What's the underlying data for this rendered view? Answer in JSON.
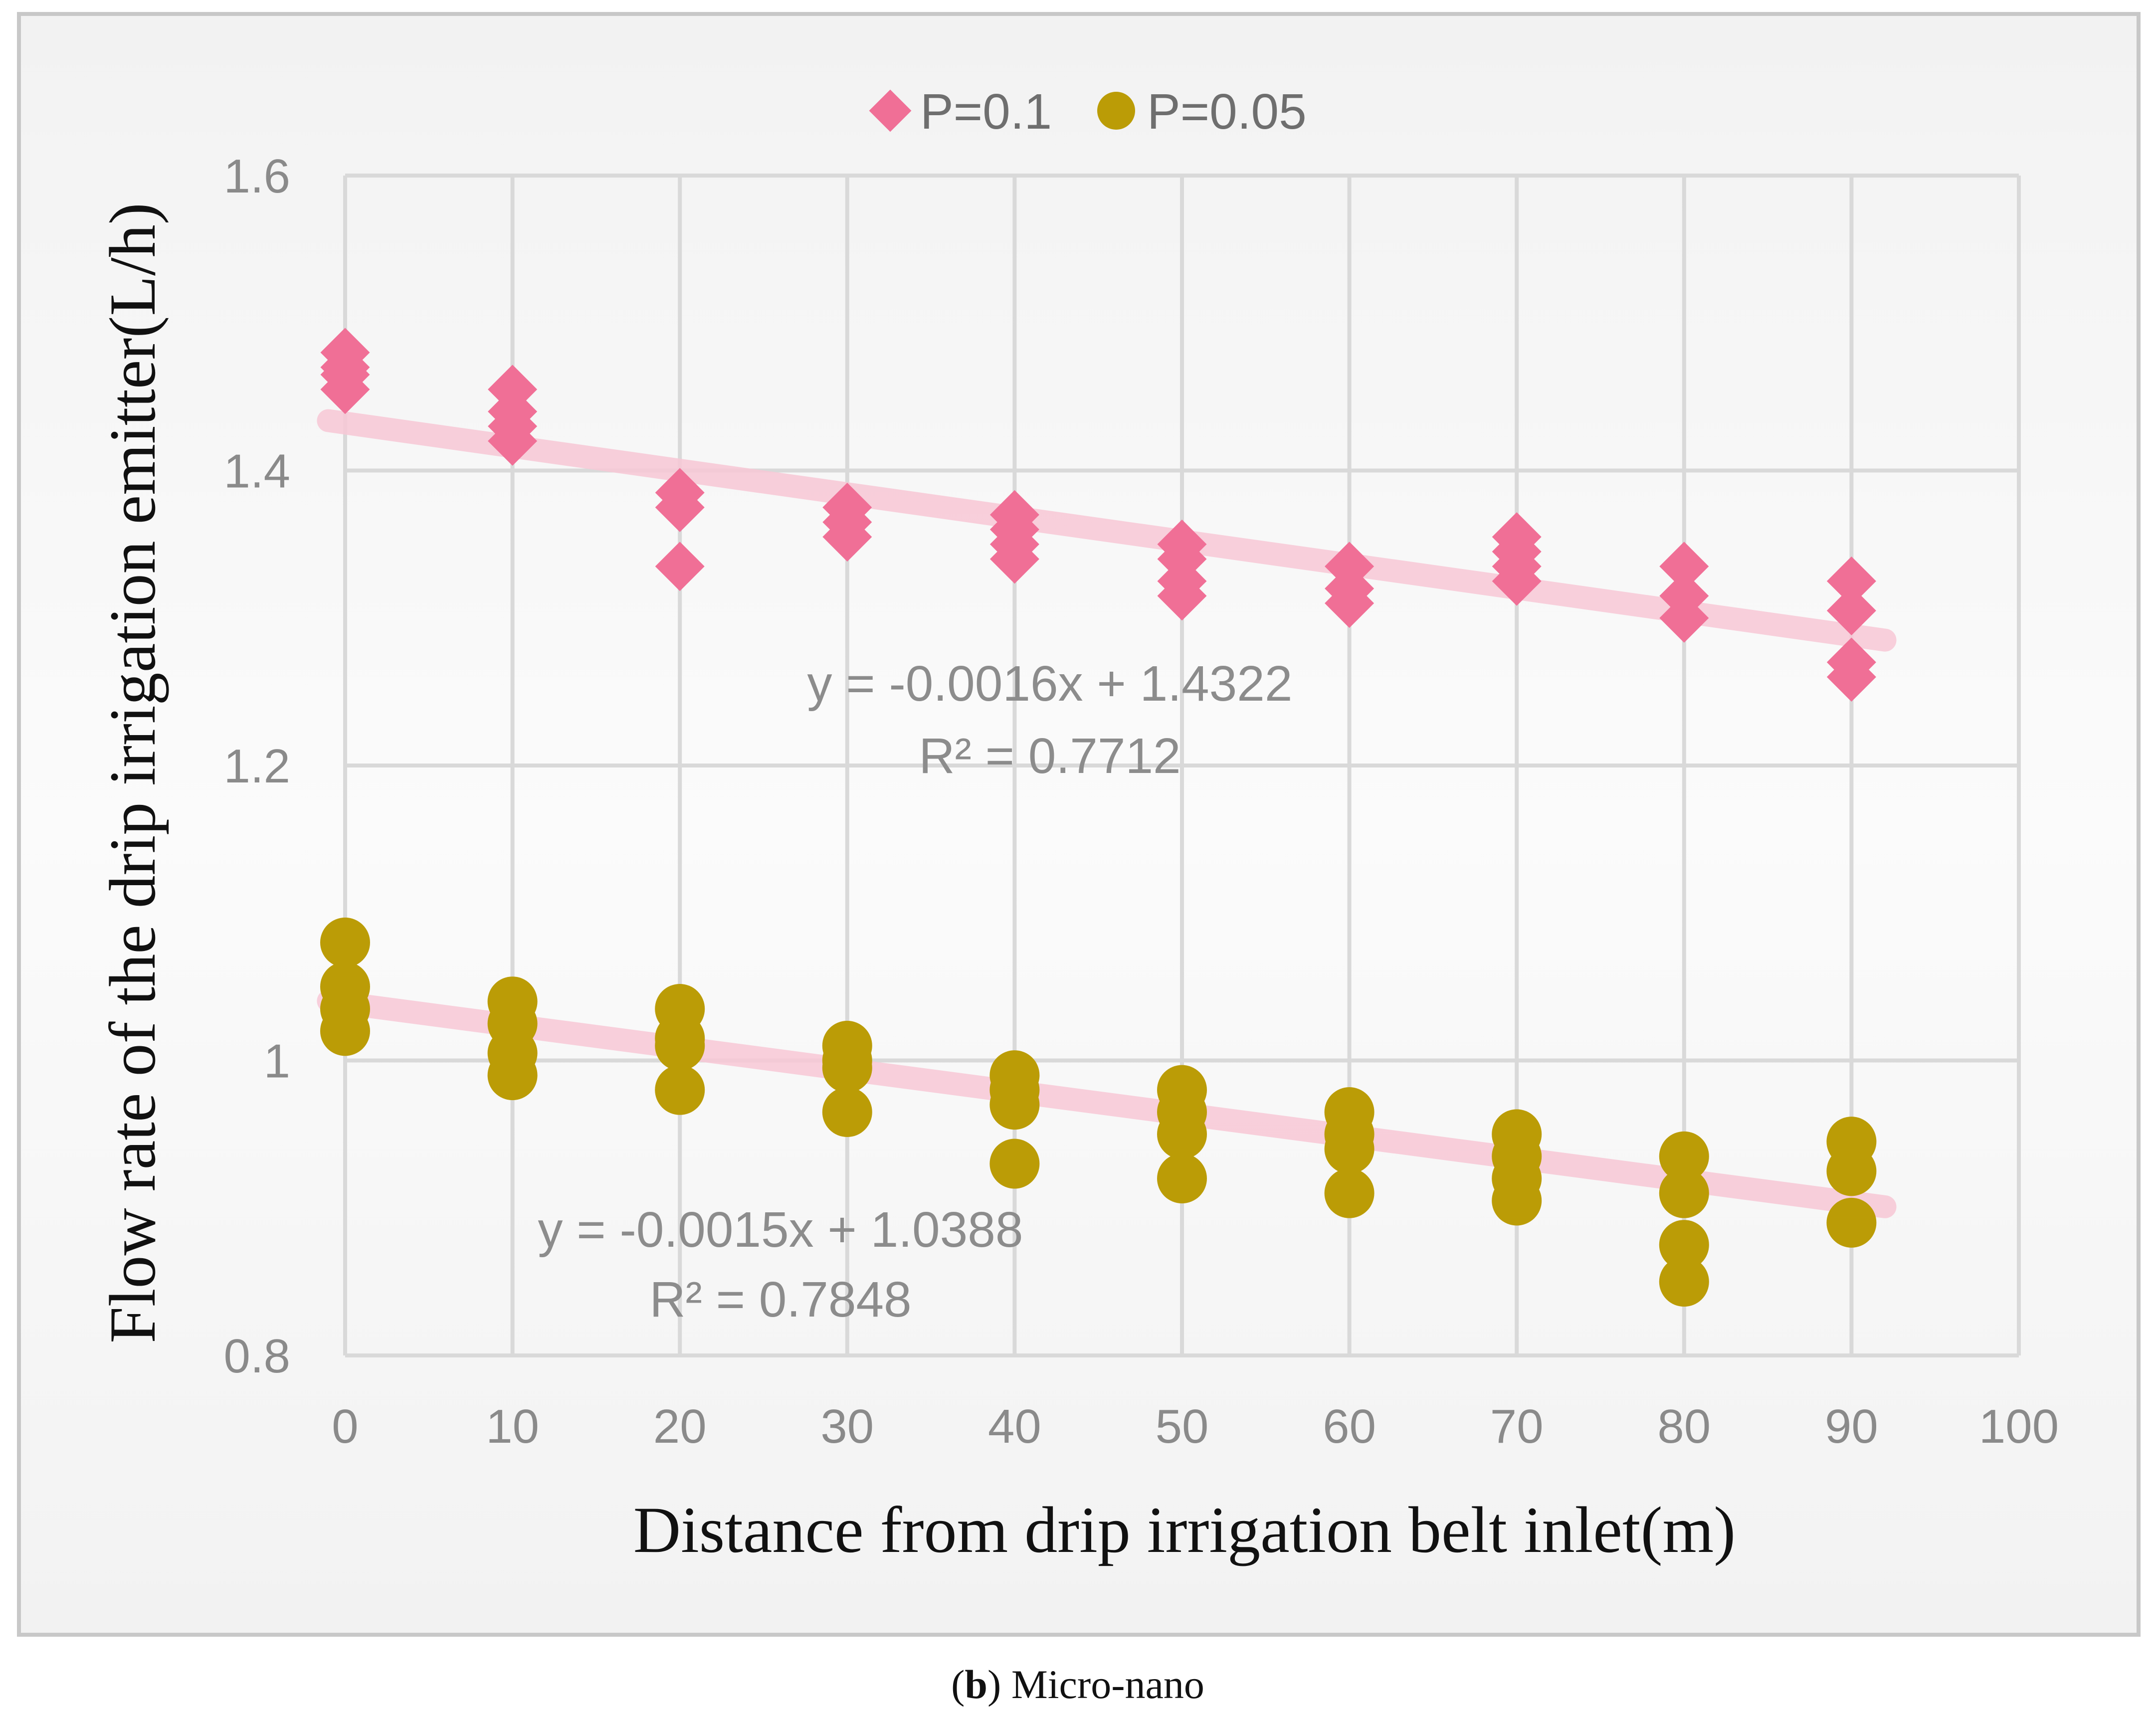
{
  "chart_data": {
    "type": "scatter",
    "xlabel": "Distance from drip irrigation belt inlet(m)",
    "ylabel": "Flow rate of the drip irrigation emitter(L/h)",
    "xlim": [
      0,
      100
    ],
    "ylim": [
      0.8,
      1.6
    ],
    "x_ticks": [
      "0",
      "10",
      "20",
      "30",
      "40",
      "50",
      "60",
      "70",
      "80",
      "90",
      "100"
    ],
    "y_ticks": [
      "0.8",
      "1",
      "1.2",
      "1.4",
      "1.6"
    ],
    "grid": true,
    "legend_position": "top-center",
    "series": [
      {
        "name": "P=0.1",
        "marker": "diamond",
        "color": "#f06f96",
        "points": [
          [
            0,
            1.48
          ],
          [
            0,
            1.47
          ],
          [
            0,
            1.465
          ],
          [
            0,
            1.455
          ],
          [
            10,
            1.455
          ],
          [
            10,
            1.44
          ],
          [
            10,
            1.43
          ],
          [
            10,
            1.42
          ],
          [
            20,
            1.385
          ],
          [
            20,
            1.375
          ],
          [
            20,
            1.335
          ],
          [
            30,
            1.375
          ],
          [
            30,
            1.365
          ],
          [
            30,
            1.355
          ],
          [
            40,
            1.37
          ],
          [
            40,
            1.36
          ],
          [
            40,
            1.35
          ],
          [
            40,
            1.34
          ],
          [
            50,
            1.35
          ],
          [
            50,
            1.34
          ],
          [
            50,
            1.325
          ],
          [
            50,
            1.315
          ],
          [
            60,
            1.335
          ],
          [
            60,
            1.32
          ],
          [
            60,
            1.31
          ],
          [
            70,
            1.355
          ],
          [
            70,
            1.345
          ],
          [
            70,
            1.335
          ],
          [
            70,
            1.325
          ],
          [
            80,
            1.335
          ],
          [
            80,
            1.315
          ],
          [
            80,
            1.3
          ],
          [
            90,
            1.325
          ],
          [
            90,
            1.305
          ],
          [
            90,
            1.27
          ],
          [
            90,
            1.26
          ]
        ],
        "trendline": {
          "slope": -0.0016,
          "intercept": 1.4322,
          "equation": "y = -0.0016x + 1.4322",
          "r2": "R² = 0.7712"
        }
      },
      {
        "name": "P=0.05",
        "marker": "circle",
        "color": "#bb9c06",
        "points": [
          [
            0,
            1.08
          ],
          [
            0,
            1.05
          ],
          [
            0,
            1.035
          ],
          [
            0,
            1.02
          ],
          [
            10,
            1.04
          ],
          [
            10,
            1.025
          ],
          [
            10,
            1.005
          ],
          [
            10,
            0.99
          ],
          [
            20,
            1.035
          ],
          [
            20,
            1.015
          ],
          [
            20,
            1.01
          ],
          [
            20,
            0.98
          ],
          [
            30,
            1.01
          ],
          [
            30,
            1.0
          ],
          [
            30,
            0.995
          ],
          [
            30,
            0.965
          ],
          [
            40,
            0.99
          ],
          [
            40,
            0.98
          ],
          [
            40,
            0.97
          ],
          [
            40,
            0.93
          ],
          [
            50,
            0.98
          ],
          [
            50,
            0.965
          ],
          [
            50,
            0.95
          ],
          [
            50,
            0.92
          ],
          [
            60,
            0.965
          ],
          [
            60,
            0.95
          ],
          [
            60,
            0.94
          ],
          [
            60,
            0.91
          ],
          [
            70,
            0.95
          ],
          [
            70,
            0.935
          ],
          [
            70,
            0.92
          ],
          [
            70,
            0.905
          ],
          [
            80,
            0.935
          ],
          [
            80,
            0.91
          ],
          [
            80,
            0.875
          ],
          [
            80,
            0.85
          ],
          [
            90,
            0.945
          ],
          [
            90,
            0.925
          ],
          [
            90,
            0.89
          ]
        ],
        "trendline": {
          "slope": -0.0015,
          "intercept": 1.0388,
          "equation": "y = -0.0015x + 1.0388",
          "r2": "R² = 0.7848"
        }
      }
    ],
    "trendline_color": "#f8c8d6",
    "caption_bold": "b",
    "caption_text": "Micro-nano"
  }
}
